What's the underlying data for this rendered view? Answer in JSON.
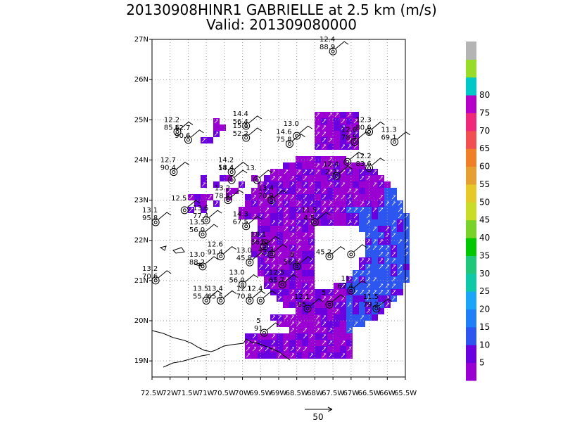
{
  "title": {
    "line1": "20130908HINR1 GABRIELLE at 2.5 km (m/s)",
    "line2": "Valid: 201309080000"
  },
  "axes": {
    "lat_labels": [
      "27N",
      "26N",
      "25N",
      "24N",
      "23N",
      "22N",
      "21N",
      "20N",
      "19N"
    ],
    "lat_values": [
      27,
      26,
      25,
      24,
      23,
      22,
      21,
      20,
      19
    ],
    "lon_labels": [
      "72.5W",
      "72W",
      "71.5W",
      "71W",
      "70.5W",
      "70W",
      "69.5W",
      "69W",
      "68.5W",
      "68W",
      "67.5W",
      "67W",
      "66.5W",
      "66W",
      "65.5W"
    ],
    "lon_values": [
      -72.5,
      -72,
      -71.5,
      -71,
      -70.5,
      -70,
      -69.5,
      -69,
      -68.5,
      -68,
      -67.5,
      -67,
      -66.5,
      -66,
      -65.5
    ],
    "lon_range": [
      -72.5,
      -65.5
    ],
    "lat_range": [
      18.6,
      27.0
    ],
    "grid": true
  },
  "colorbar": {
    "labels": [
      "5",
      "10",
      "15",
      "20",
      "25",
      "30",
      "35",
      "40",
      "45",
      "50",
      "55",
      "60",
      "65",
      "70",
      "75",
      "80"
    ],
    "colors": [
      "#9b00d3",
      "#6a00e0",
      "#2d55f0",
      "#1e7ff8",
      "#1aa5f8",
      "#0fc8a8",
      "#1ec878",
      "#00c800",
      "#78d22a",
      "#c8dc28",
      "#e6c828",
      "#e6a032",
      "#f08028",
      "#f05050",
      "#f0287a",
      "#b400c8",
      "#00c8c8",
      "#96dc28",
      "#b4b4b4"
    ]
  },
  "vector_scale": {
    "label": "50"
  },
  "stations": [
    {
      "lon": -67.5,
      "lat": 26.7,
      "ws": "12.4",
      "wd": "88.9"
    },
    {
      "lon": -71.8,
      "lat": 24.7,
      "ws": "12.2",
      "wd": "85.6"
    },
    {
      "lon": -71.5,
      "lat": 24.5,
      "ws": "12.7",
      "wd": "90.6"
    },
    {
      "lon": -69.9,
      "lat": 24.85,
      "ws": "14.4",
      "wd": "56.4"
    },
    {
      "lon": -69.9,
      "lat": 24.55,
      "ws": "15.1",
      "wd": "52.2"
    },
    {
      "lon": -68.5,
      "lat": 24.6,
      "ws": "13.0",
      "wd": ""
    },
    {
      "lon": -68.7,
      "lat": 24.4,
      "ws": "14.6",
      "wd": "75.8"
    },
    {
      "lon": -66.5,
      "lat": 24.7,
      "ws": "12.3",
      "wd": "80.6"
    },
    {
      "lon": -66.9,
      "lat": 24.45,
      "ws": "12.6",
      "wd": "78.5"
    },
    {
      "lon": -65.8,
      "lat": 24.45,
      "ws": "11.3",
      "wd": "69.1"
    },
    {
      "lon": -71.9,
      "lat": 23.7,
      "ws": "12.7",
      "wd": "90.4"
    },
    {
      "lon": -70.3,
      "lat": 23.7,
      "ws": "14.2",
      "wd": "58.4"
    },
    {
      "lon": -70.3,
      "lat": 23.5,
      "ws": "14.4",
      "wd": ""
    },
    {
      "lon": -69.6,
      "lat": 23.5,
      "ws": "13.",
      "wd": ""
    },
    {
      "lon": -67.1,
      "lat": 23.95,
      "ws": "",
      "wd": ""
    },
    {
      "lon": -66.5,
      "lat": 23.8,
      "ws": "12.2",
      "wd": "83.6"
    },
    {
      "lon": -67.4,
      "lat": 23.6,
      "ws": "12.4",
      "wd": "2.2"
    },
    {
      "lon": -70.4,
      "lat": 23.0,
      "ws": "13.2",
      "wd": "78.5"
    },
    {
      "lon": -69.2,
      "lat": 23.0,
      "ws": "13.4",
      "wd": "70.9"
    },
    {
      "lon": -71.6,
      "lat": 22.75,
      "ws": "12.5",
      "wd": ""
    },
    {
      "lon": -71.0,
      "lat": 22.5,
      "ws": "13.6",
      "wd": "77.4"
    },
    {
      "lon": -69.9,
      "lat": 22.35,
      "ws": "14.3",
      "wd": "67.5"
    },
    {
      "lon": -72.4,
      "lat": 22.45,
      "ws": "13.1",
      "wd": "95.8"
    },
    {
      "lon": -71.1,
      "lat": 22.15,
      "ws": "13.5",
      "wd": "56.0"
    },
    {
      "lon": -68.0,
      "lat": 22.45,
      "ws": "11.5",
      "wd": "4.5"
    },
    {
      "lon": -69.4,
      "lat": 21.85,
      "ws": "18.1",
      "wd": "36.5"
    },
    {
      "lon": -69.2,
      "lat": 21.65,
      "ws": "12.",
      "wd": "45.3"
    },
    {
      "lon": -70.6,
      "lat": 21.6,
      "ws": "12.6",
      "wd": "91.4"
    },
    {
      "lon": -71.1,
      "lat": 21.35,
      "ws": "13.0",
      "wd": "88.2"
    },
    {
      "lon": -69.8,
      "lat": 21.45,
      "ws": "13.0",
      "wd": "45.8"
    },
    {
      "lon": -68.5,
      "lat": 21.35,
      "ws": ".8",
      "wd": "56.5"
    },
    {
      "lon": -67.6,
      "lat": 21.6,
      "ws": "",
      "wd": "45.2"
    },
    {
      "lon": -67.0,
      "lat": 21.65,
      "ws": "",
      "wd": ""
    },
    {
      "lon": -72.4,
      "lat": 21.0,
      "ws": "13.2",
      "wd": "70.6"
    },
    {
      "lon": -70.0,
      "lat": 20.9,
      "ws": "13.0",
      "wd": "56.0"
    },
    {
      "lon": -68.9,
      "lat": 20.9,
      "ws": "12.5",
      "wd": "65.7"
    },
    {
      "lon": -67.0,
      "lat": 20.75,
      "ws": "11",
      "wd": "67.4"
    },
    {
      "lon": -71.0,
      "lat": 20.5,
      "ws": "13.5",
      "wd": "55.4"
    },
    {
      "lon": -70.6,
      "lat": 20.5,
      "ws": "13.4",
      "wd": "65.5"
    },
    {
      "lon": -69.8,
      "lat": 20.5,
      "ws": "12.1",
      "wd": "70.8"
    },
    {
      "lon": -69.5,
      "lat": 20.5,
      "ws": "12.4",
      "wd": ""
    },
    {
      "lon": -68.2,
      "lat": 20.3,
      "ws": "12.1",
      "wd": "85"
    },
    {
      "lon": -67.6,
      "lat": 20.4,
      "ws": "5",
      "wd": ""
    },
    {
      "lon": -66.3,
      "lat": 20.3,
      "ws": "11.5",
      "wd": "79.2"
    },
    {
      "lon": -69.4,
      "lat": 19.7,
      "ws": "5",
      "wd": "91"
    }
  ]
}
